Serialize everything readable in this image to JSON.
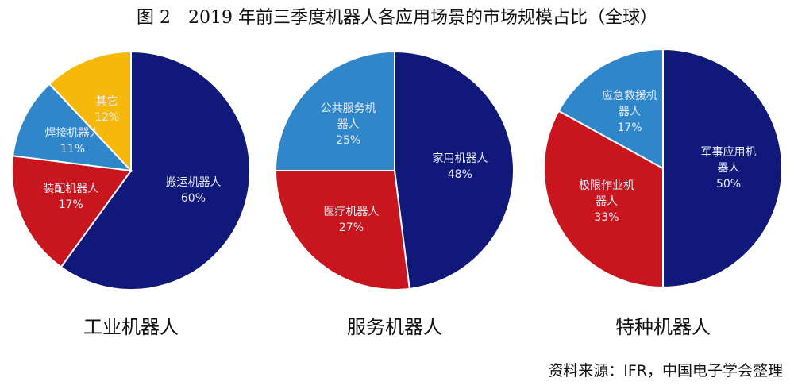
{
  "title": "图 2　2019 年前三季度机器人各应用场景的市场规模占比（全球）",
  "source": "资料来源：IFR，中国电子学会整理",
  "chart_data": [
    {
      "type": "pie",
      "title": "工业机器人",
      "categories": [
        "搬运机器人",
        "装配机器人",
        "焊接机器人",
        "其它"
      ],
      "values": [
        60,
        17,
        11,
        12
      ],
      "value_labels": [
        "60%",
        "17%",
        "11%",
        "12%"
      ],
      "colors": [
        "#10197a",
        "#c9151e",
        "#2f86c9",
        "#f6b90a"
      ]
    },
    {
      "type": "pie",
      "title": "服务机器人",
      "categories": [
        "家用机器人",
        "医疗机器人",
        "公共服务机器人"
      ],
      "values": [
        48,
        27,
        25
      ],
      "value_labels": [
        "48%",
        "27%",
        "25%"
      ],
      "colors": [
        "#10197a",
        "#c9151e",
        "#2f86c9"
      ]
    },
    {
      "type": "pie",
      "title": "特种机器人",
      "categories": [
        "军事应用机器人",
        "极限作业机器人",
        "应急救援机器人"
      ],
      "values": [
        50,
        33,
        17
      ],
      "value_labels": [
        "50%",
        "33%",
        "17%"
      ],
      "colors": [
        "#10197a",
        "#c9151e",
        "#2f86c9"
      ]
    }
  ]
}
